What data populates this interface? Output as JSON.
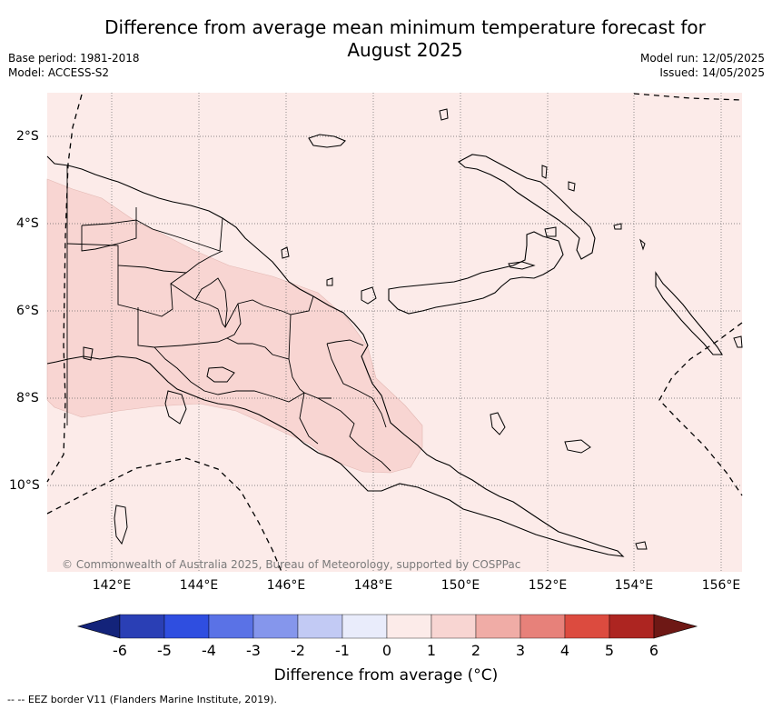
{
  "title_line1": "Difference from average mean minimum temperature forecast for",
  "title_line2": "August 2025",
  "base_period": "Base period: 1981-2018",
  "model": "Model: ACCESS-S2",
  "model_run": "Model run: 12/05/2025",
  "issued": "Issued: 14/05/2025",
  "copyright": "© Commonwealth of Australia 2025, Bureau of Meteorology, supported by COSPPac",
  "legend_title": "Difference from average (°C)",
  "footer": "-- -- EEZ border V11 (Flanders Marine Institute, 2019).",
  "lat_ticks": [
    "2°S",
    "4°S",
    "6°S",
    "8°S",
    "10°S"
  ],
  "lon_ticks": [
    "142°E",
    "144°E",
    "146°E",
    "148°E",
    "150°E",
    "152°E",
    "154°E",
    "156°E"
  ],
  "colorbar": {
    "ticks": [
      "-6",
      "-5",
      "-4",
      "-3",
      "-2",
      "-1",
      "0",
      "1",
      "2",
      "3",
      "4",
      "5",
      "6"
    ],
    "colors": [
      "#13237a",
      "#2a3fb5",
      "#2f4ee0",
      "#5a72e6",
      "#8596ec",
      "#c2caf4",
      "#e9ecfb",
      "#fcebe9",
      "#f8d5d2",
      "#f0aca6",
      "#e7817a",
      "#dc4b3f",
      "#ad2521",
      "#6e1815"
    ]
  },
  "map": {
    "ocean_color": "#fcebe9",
    "warm_color": "#f8d5d2",
    "eez_style": "dashed"
  }
}
